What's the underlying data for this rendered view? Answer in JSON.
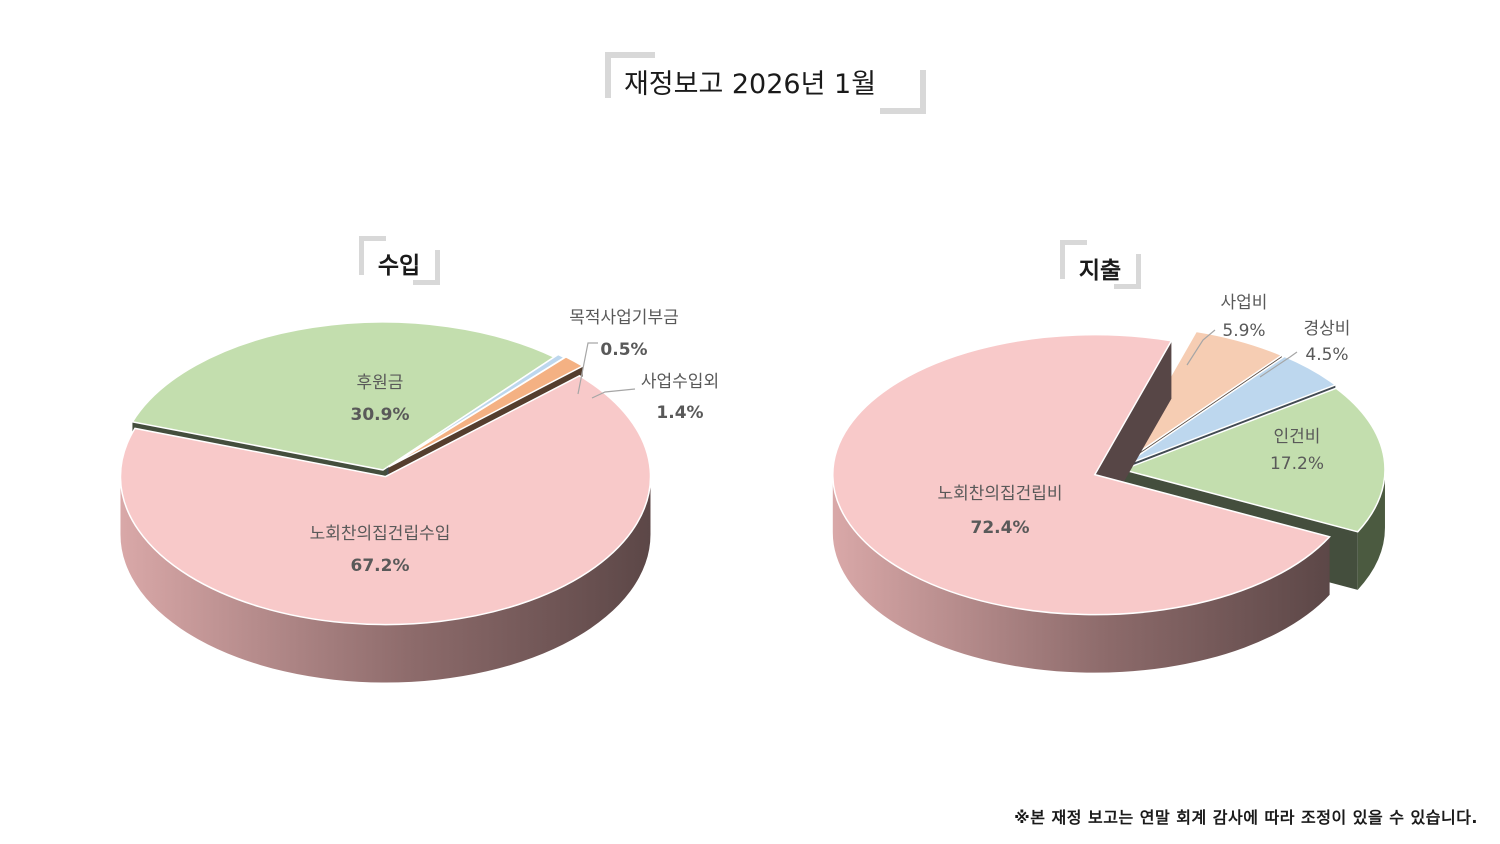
{
  "title": "재정보고 2026년 1월",
  "note": "※본 재정 보고는 연말 회계 감사에 따라 조정이 있을 수 있습니다.",
  "colors": {
    "pink": "#f8c9c9",
    "green": "#c3deae",
    "orange": "#f4b183",
    "blue": "#bdd7ee",
    "peach": "#f6cdb3"
  },
  "chart_data": [
    {
      "type": "pie",
      "title": "수입",
      "categories": [
        "노회찬의집건립수입",
        "후원금",
        "목적사업기부금",
        "사업수입외"
      ],
      "values": [
        67.2,
        30.9,
        0.5,
        1.4
      ],
      "value_labels": [
        "67.2%",
        "30.9%",
        "0.5%",
        "1.4%"
      ],
      "style": "3d-exploded"
    },
    {
      "type": "pie",
      "title": "지출",
      "categories": [
        "노회찬의집건립비",
        "사업비",
        "경상비",
        "인건비"
      ],
      "values": [
        72.4,
        5.9,
        4.5,
        17.2
      ],
      "value_labels": [
        "72.4%",
        "5.9%",
        "4.5%",
        "17.2%"
      ],
      "style": "3d-exploded"
    }
  ]
}
